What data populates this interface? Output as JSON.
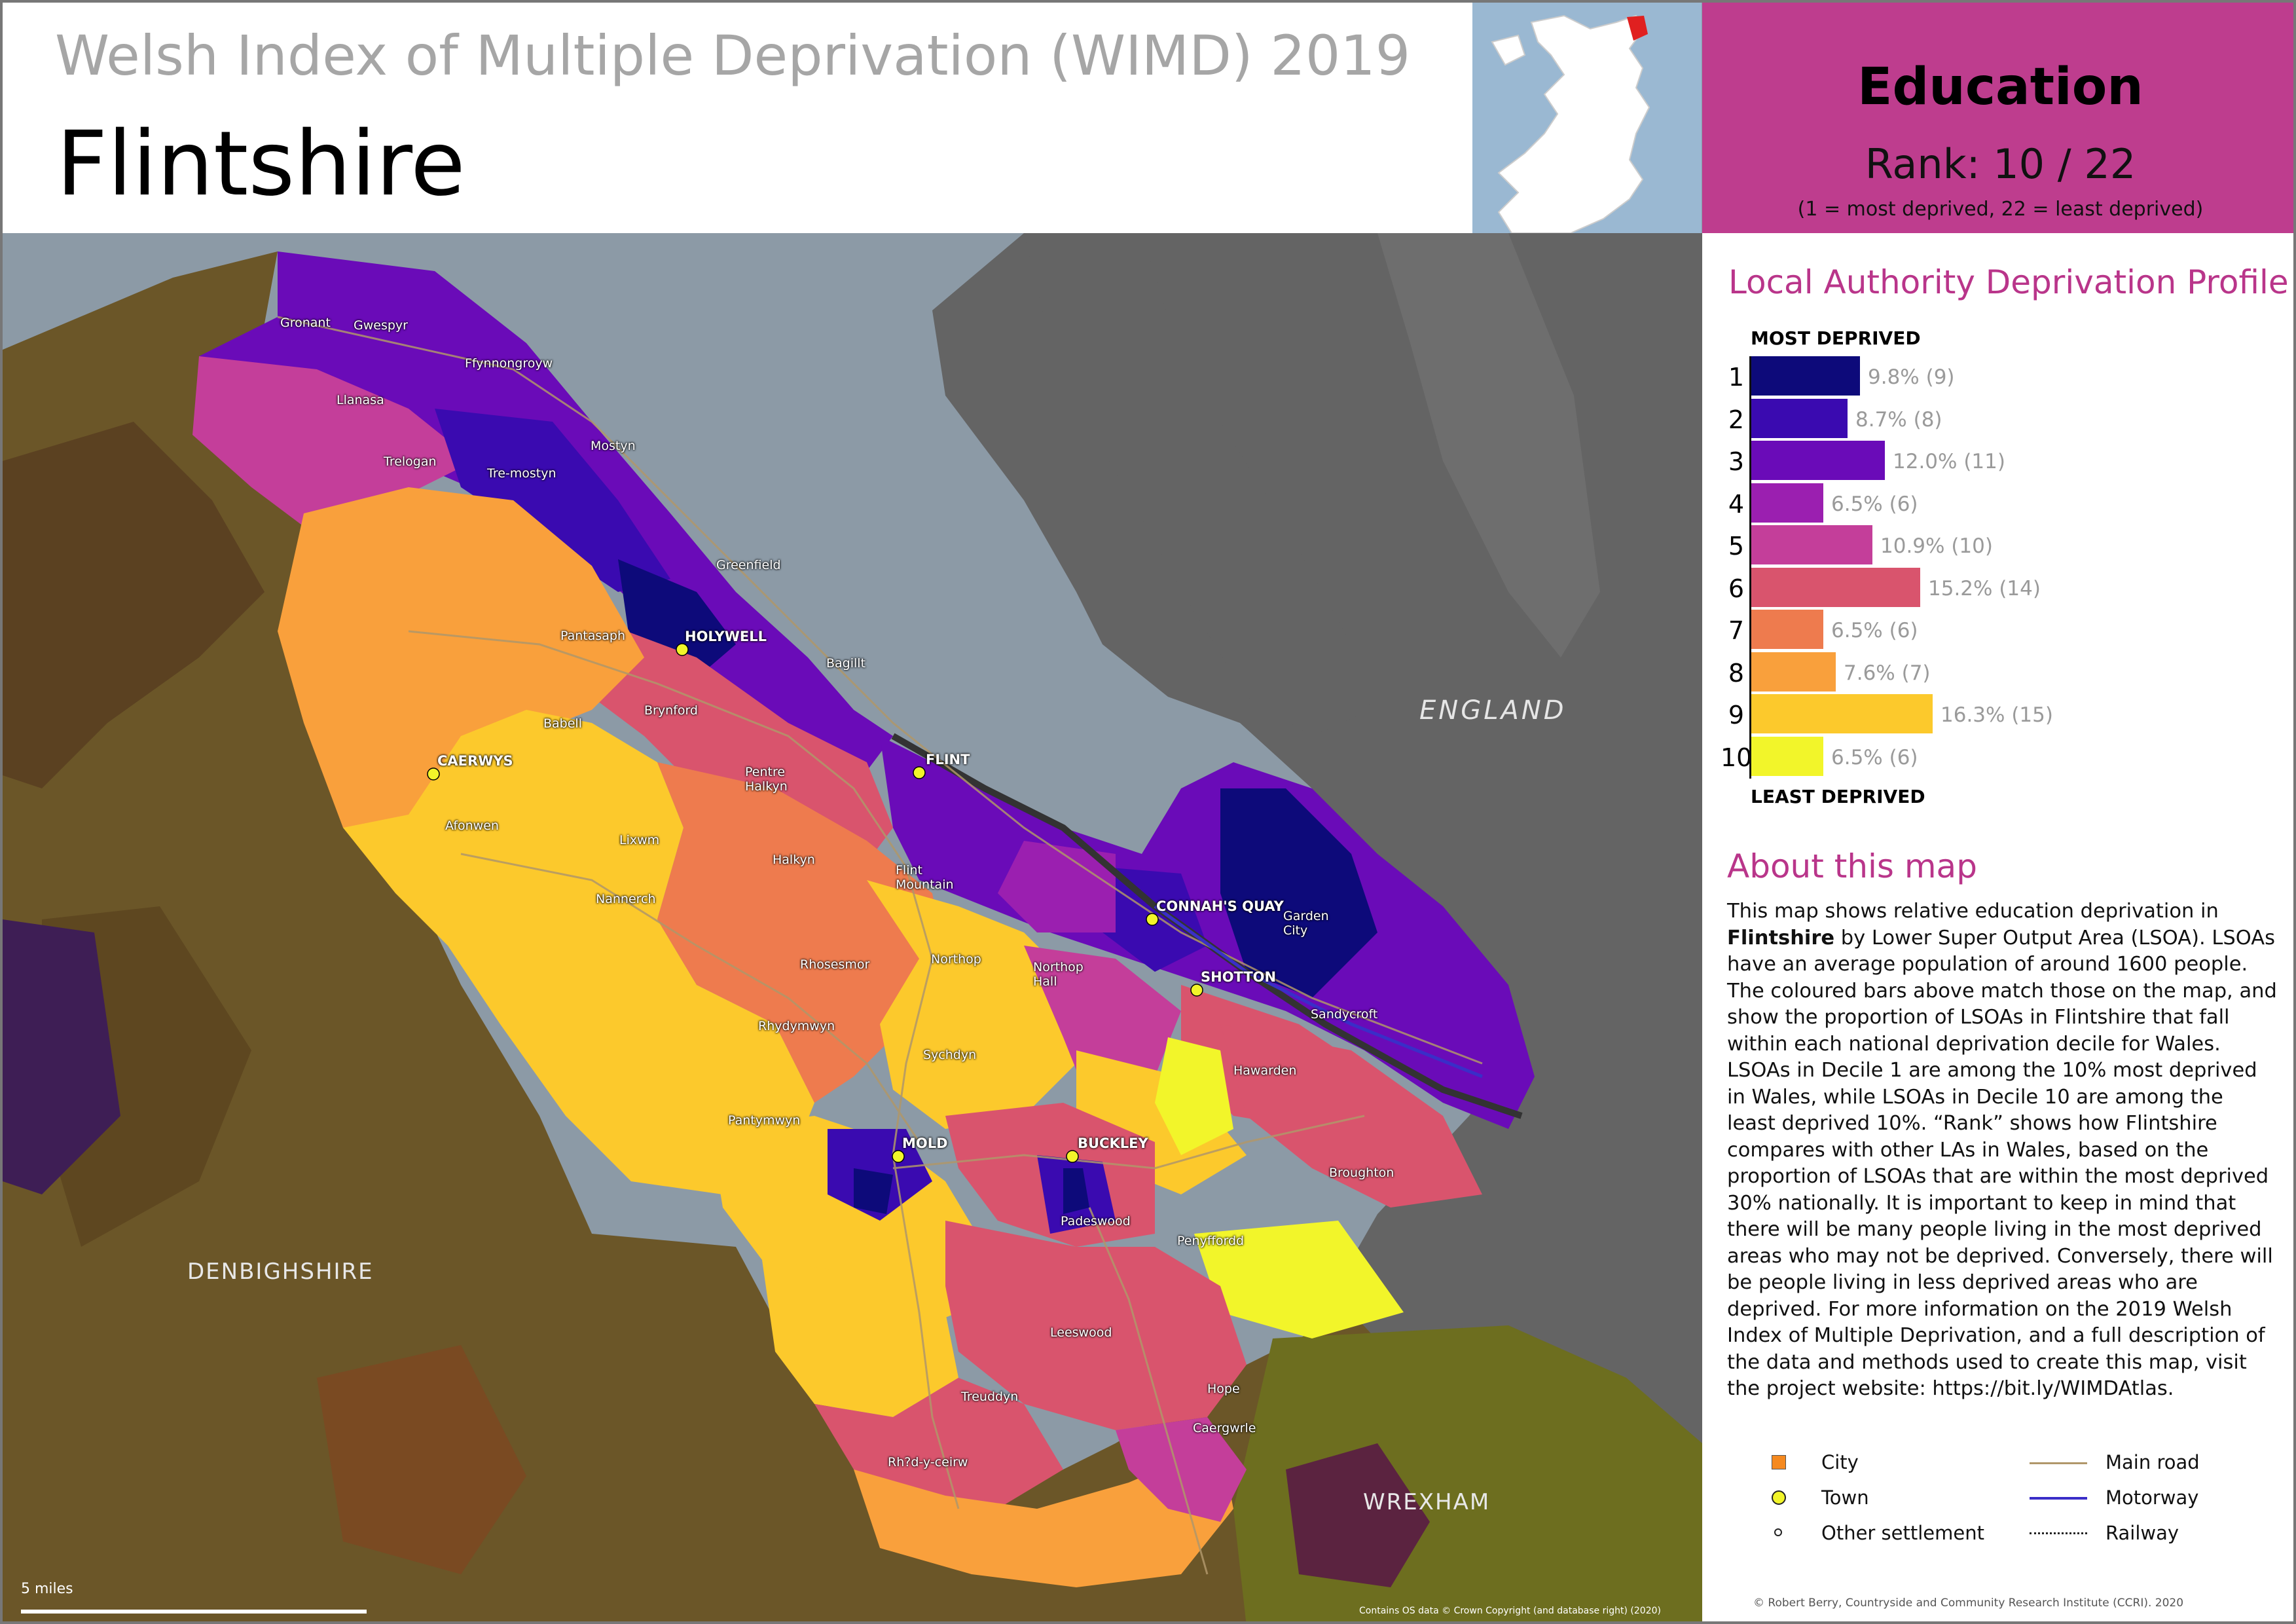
{
  "header": {
    "supertitle": "Welsh Index of Multiple Deprivation (WIMD) 2019",
    "title": "Flintshire"
  },
  "topic": {
    "name": "Education",
    "rank_label": "Rank: 10 ∕ 22",
    "rank_note": "(1 =   most deprived, 22 = least deprived)",
    "color": "#be3d8e"
  },
  "profile": {
    "title": "Local Authority Deprivation Profile",
    "most_label": "MOST DEPRIVED",
    "least_label": "LEAST DEPRIVED",
    "deciles": [
      {
        "decile": "1",
        "percent": 9.8,
        "label": "9.8% (9)",
        "color": "#0d0a7a"
      },
      {
        "decile": "2",
        "percent": 8.7,
        "label": "8.7% (8)",
        "color": "#3a0ab0"
      },
      {
        "decile": "3",
        "percent": 12.0,
        "label": "12.0% (11)",
        "color": "#6a0bb8"
      },
      {
        "decile": "4",
        "percent": 6.5,
        "label": "6.5% (6)",
        "color": "#9b1fb0"
      },
      {
        "decile": "5",
        "percent": 10.9,
        "label": "10.9% (10)",
        "color": "#c43e9a"
      },
      {
        "decile": "6",
        "percent": 15.2,
        "label": "15.2% (14)",
        "color": "#d9546d"
      },
      {
        "decile": "7",
        "percent": 6.5,
        "label": "6.5% (6)",
        "color": "#ee7b4e"
      },
      {
        "decile": "8",
        "percent": 7.6,
        "label": "7.6% (7)",
        "color": "#f9a03c"
      },
      {
        "decile": "9",
        "percent": 16.3,
        "label": "16.3% (15)",
        "color": "#fcc92c"
      },
      {
        "decile": "10",
        "percent": 6.5,
        "label": "6.5% (6)",
        "color": "#f2f52a"
      }
    ]
  },
  "about": {
    "title": "About this map",
    "p1_before": "This map shows relative education deprivation in ",
    "p1_bold": "Flintshire",
    "p1_after": " by Lower Super Output Area (LSOA). LSOAs have an average population of around 1600 people. The coloured bars above match those on the map, and show the proportion of LSOAs in Flintshire that fall within each national deprivation decile for Wales. LSOAs in Decile 1 are among the 10% most deprived in Wales, while LSOAs in Decile 10 are among the least deprived 10%. “Rank” shows how Flintshire compares with other LAs in Wales, based on the proportion of LSOAs that are within the most deprived 30% nationally. It is important to keep in mind that there will be many people living in the most deprived areas who may not be deprived. Conversely, there will be people living in less deprived areas who are deprived. For more information on the 2019 Welsh Index of Multiple Deprivation, and a full description of the data and methods used to create this map, visit the project website: https://bit.ly/WIMDAtlas."
  },
  "legend": {
    "city": "City",
    "town": "Town",
    "other": "Other settlement",
    "main_road": "Main road",
    "motorway": "Motorway",
    "railway": "Railway"
  },
  "map": {
    "regions": {
      "england": "ENGLAND",
      "denbighshire": "DENBIGHSHIRE",
      "wrexham": "WREXHAM"
    },
    "towns": {
      "holywell": "HOLYWELL",
      "flint": "FLINT",
      "caerwys": "CAERWYS",
      "connahs_quay": "CONNAH'S QUAY",
      "shotton": "SHOTTON",
      "mold": "MOLD",
      "buckley": "BUCKLEY"
    },
    "places": {
      "gronant": "Gronant",
      "gwespyr": "Gwespyr",
      "ffynnongroyw": "Ffynnongroyw",
      "llanasa": "Llanasa",
      "trelogan": "Trelogan",
      "tre_mostyn": "Tre-mostyn",
      "mostyn": "Mostyn",
      "greenfield": "Greenfield",
      "pantasaph": "Pantasaph",
      "bagillt": "Bagillt",
      "babell": "Babell",
      "brynford": "Brynford",
      "pentre_halkyn": "Pentre\nHalkyn",
      "afonwen": "Afonwen",
      "lixwm": "Lixwm",
      "halkyn": "Halkyn",
      "flint_mountain": "Flint\nMountain",
      "nannerch": "Nannerch",
      "garden_city": "Garden\nCity",
      "rhosesmor": "Rhosesmor",
      "northop": "Northop",
      "northop_hall": "Northop\nHall",
      "sandycroft": "Sandycroft",
      "rhydymwyn": "Rhydymwyn",
      "sychdyn": "Sychdyn",
      "hawarden": "Hawarden",
      "pantymwyn": "Pantymwyn",
      "broughton": "Broughton",
      "padeswood": "Padeswood",
      "penyffordd": "Penyffordd",
      "leeswood": "Leeswood",
      "hope": "Hope",
      "treuddyn": "Treuddyn",
      "caergwrle": "Caergwrle",
      "rhydyceirw": "Rh?d-y-ceirw"
    },
    "scale_label": "5 miles"
  },
  "credits": {
    "os": "Contains OS data © Crown Copyright (and database right) (2020)",
    "author": "© Robert Berry, Countryside and Community Research Institute (CCRI). 2020"
  }
}
